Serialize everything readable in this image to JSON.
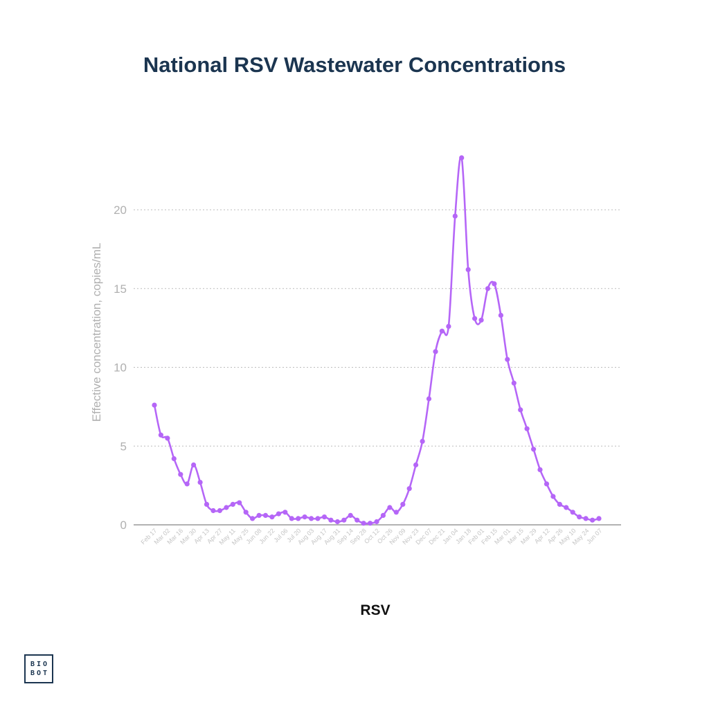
{
  "title": "National RSV Wastewater Concentrations",
  "series_label": "RSV",
  "logo": {
    "line1": "BIO",
    "line2": "BOT"
  },
  "colors": {
    "series": "#b566f7",
    "title": "#1b3550",
    "axis_text": "#b0b0b0",
    "grid": "#bbbbbb"
  },
  "chart_data": {
    "type": "line",
    "title": "National RSV Wastewater Concentrations",
    "xlabel": "RSV",
    "ylabel": "Effective concentration, copies/mL",
    "ylim": [
      0,
      25
    ],
    "yticks": [
      0,
      5,
      10,
      15,
      20
    ],
    "grid": "horizontal dotted",
    "x_tick_labels": [
      "Feb 17",
      "Mar 02",
      "Mar 16",
      "Mar 30",
      "Apr 13",
      "Apr 27",
      "May 11",
      "May 25",
      "Jun 08",
      "Jun 22",
      "Jul 06",
      "Jul 20",
      "Aug 03",
      "Aug 17",
      "Aug 31",
      "Sep 14",
      "Sep 28",
      "Oct 12",
      "Oct 26",
      "Nov 09",
      "Nov 23",
      "Dec 07",
      "Dec 21",
      "Jan 04",
      "Jan 18",
      "Feb 01",
      "Feb 15",
      "Mar 01",
      "Mar 15",
      "Mar 29",
      "Apr 12",
      "Apr 26",
      "May 10",
      "May 24",
      "Jun 07"
    ],
    "series": [
      {
        "values": [
          7.6,
          5.7,
          5.5,
          4.2,
          3.2,
          2.6,
          3.8,
          2.7,
          1.3,
          0.9,
          0.9,
          1.1,
          1.3,
          1.4,
          0.8,
          0.4,
          0.6,
          0.6,
          0.5,
          0.7,
          0.8,
          0.4,
          0.4,
          0.5,
          0.4,
          0.4,
          0.5,
          0.3,
          0.2,
          0.3,
          0.6,
          0.3,
          0.1,
          0.1,
          0.2,
          0.6,
          1.1,
          0.8,
          1.3,
          2.3,
          3.8,
          5.3,
          8.0,
          11.0,
          12.3,
          12.6,
          19.6,
          23.3,
          16.2,
          13.1,
          13.0,
          15.0,
          15.3,
          13.3,
          10.5,
          9.0,
          7.3,
          6.1,
          4.8,
          3.5,
          2.6,
          1.8,
          1.3,
          1.1,
          0.8,
          0.5,
          0.4,
          0.3,
          0.4
        ]
      }
    ]
  }
}
